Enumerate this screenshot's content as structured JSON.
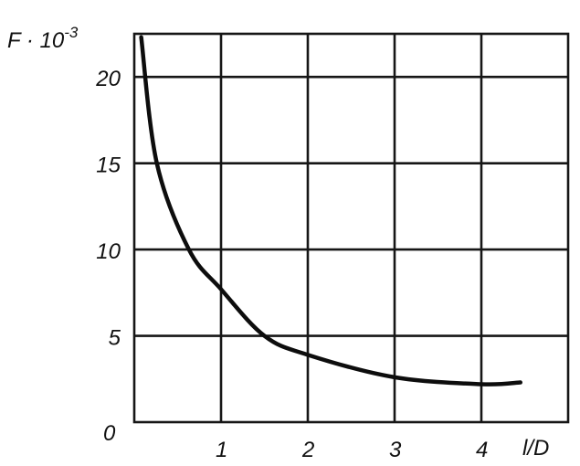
{
  "chart_data": {
    "type": "line",
    "title": "",
    "ylabel": "F · 10",
    "ylabel_exponent": "-3",
    "xlabel": "l/D",
    "xlim": [
      0,
      5
    ],
    "ylim": [
      0,
      22.5
    ],
    "grid": true,
    "x_ticks": [
      "1",
      "2",
      "3",
      "4"
    ],
    "y_ticks": [
      "5",
      "10",
      "15",
      "20"
    ],
    "origin_label": "0",
    "x_tick_values": [
      1,
      2,
      3,
      4
    ],
    "y_tick_values": [
      5,
      10,
      15,
      20
    ],
    "series": [
      {
        "x": [
          0.08,
          0.26,
          0.63,
          1.0,
          1.5,
          2.0,
          3.0,
          4.0,
          4.45
        ],
        "y": [
          22.3,
          15.0,
          10.0,
          7.7,
          5.0,
          3.9,
          2.6,
          2.2,
          2.3
        ],
        "color": "#0d0d0d"
      }
    ]
  }
}
